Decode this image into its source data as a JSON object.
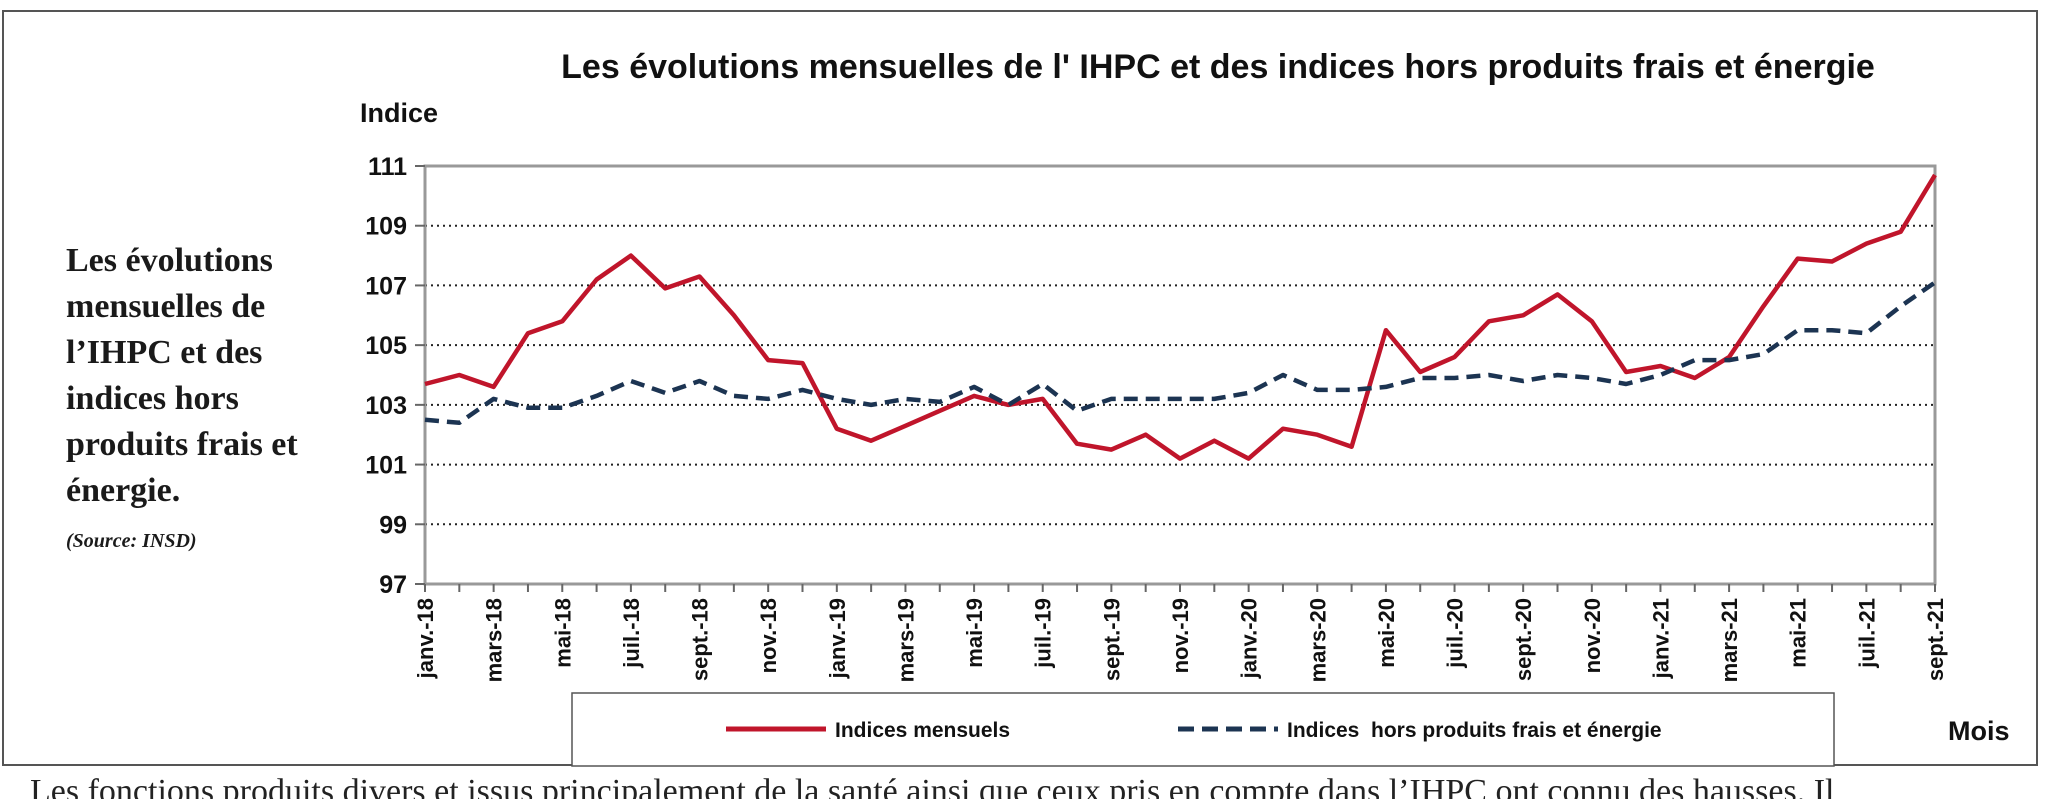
{
  "side_panel": {
    "heading": "Les évolutions mensuelles de l’IHPC et des indices hors produits frais et énergie.",
    "source": "(Source: INSD)"
  },
  "bottom_text": "Les fonctions produits divers et issus principalement de la santé ainsi que ceux pris en compte dans l’IHPC ont connu des hausses. Il",
  "chart_data": {
    "type": "line",
    "title": "Les évolutions mensuelles de l' IHPC et des indices  hors produits frais et énergie",
    "ylabel": "Indice",
    "xlabel": "Mois",
    "ylim": [
      97,
      111
    ],
    "yticks": [
      97,
      99,
      101,
      103,
      105,
      107,
      109,
      111
    ],
    "grid": true,
    "legend_position": "bottom",
    "x": [
      "janv.-18",
      "févr.-18",
      "mars-18",
      "avr.-18",
      "mai-18",
      "juin-18",
      "juil.-18",
      "août-18",
      "sept.-18",
      "oct.-18",
      "nov.-18",
      "déc.-18",
      "janv.-19",
      "févr.-19",
      "mars-19",
      "avr.-19",
      "mai-19",
      "juin-19",
      "juil.-19",
      "août-19",
      "sept.-19",
      "oct.-19",
      "nov.-19",
      "déc.-19",
      "janv.-20",
      "févr.-20",
      "mars-20",
      "avr.-20",
      "mai-20",
      "juin-20",
      "juil.-20",
      "août-20",
      "sept.-20",
      "oct.-20",
      "nov.-20",
      "déc.-20",
      "janv.-21",
      "févr.-21",
      "mars-21",
      "avr.-21",
      "mai-21",
      "juin-21",
      "juil.-21",
      "août-21",
      "sept.-21"
    ],
    "xtick_labels": [
      "janv.-18",
      "mars-18",
      "mai-18",
      "juil.-18",
      "sept.-18",
      "nov.-18",
      "janv.-19",
      "mars-19",
      "mai-19",
      "juil.-19",
      "sept.-19",
      "nov.-19",
      "janv.-20",
      "mars-20",
      "mai-20",
      "juil.-20",
      "sept.-20",
      "nov.-20",
      "janv.-21",
      "mars-21",
      "mai-21",
      "juil.-21",
      "sept.-21"
    ],
    "series": [
      {
        "name": "Indices mensuels",
        "color": "#c0152b",
        "style": "solid",
        "values": [
          103.7,
          104.0,
          103.6,
          105.4,
          105.8,
          107.2,
          108.0,
          106.9,
          107.3,
          106.0,
          104.5,
          104.4,
          102.2,
          101.8,
          102.3,
          102.8,
          103.3,
          103.0,
          103.2,
          101.7,
          101.5,
          102.0,
          101.2,
          101.8,
          101.2,
          102.2,
          102.0,
          101.6,
          105.5,
          104.1,
          104.6,
          105.8,
          106.0,
          106.7,
          105.8,
          104.1,
          104.3,
          103.9,
          104.6,
          106.3,
          107.9,
          107.8,
          108.4,
          108.8,
          110.7
        ]
      },
      {
        "name": "Indices  hors produits frais et énergie",
        "color": "#1c3452",
        "style": "dashed",
        "values": [
          102.5,
          102.4,
          103.2,
          102.9,
          102.9,
          103.3,
          103.8,
          103.4,
          103.8,
          103.3,
          103.2,
          103.5,
          103.2,
          103.0,
          103.2,
          103.1,
          103.6,
          103.0,
          103.7,
          102.8,
          103.2,
          103.2,
          103.2,
          103.2,
          103.4,
          104.0,
          103.5,
          103.5,
          103.6,
          103.9,
          103.9,
          104.0,
          103.8,
          104.0,
          103.9,
          103.7,
          104.0,
          104.5,
          104.5,
          104.7,
          105.5,
          105.5,
          105.4,
          106.3,
          107.1
        ]
      }
    ]
  }
}
